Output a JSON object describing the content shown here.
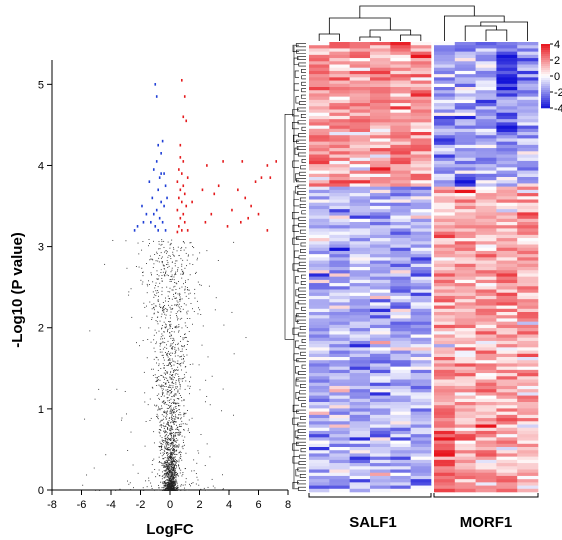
{
  "chart_data": [
    {
      "type": "scatter",
      "subtype": "volcano",
      "title": "",
      "xlabel": "LogFC",
      "ylabel": "-Log10 (P value)",
      "xlim": [
        -8,
        8
      ],
      "ylim": [
        0,
        5.3
      ],
      "xticks": [
        -8,
        -6,
        -4,
        -2,
        0,
        2,
        4,
        6,
        8
      ],
      "yticks": [
        0,
        1,
        2,
        3,
        4,
        5
      ],
      "grid": false,
      "colors": {
        "up": "#e41a1c",
        "down": "#1f3fd6",
        "ns": "#222222"
      },
      "series": [
        {
          "group": "down",
          "color": "#1f3fd6",
          "points": [
            [
              -1.0,
              5.0
            ],
            [
              -0.9,
              4.85
            ],
            [
              -0.8,
              4.25
            ],
            [
              -0.6,
              4.15
            ],
            [
              -0.9,
              4.05
            ],
            [
              -0.5,
              4.3
            ],
            [
              -1.1,
              3.95
            ],
            [
              -0.7,
              3.85
            ],
            [
              -0.4,
              3.9
            ],
            [
              -1.4,
              3.8
            ],
            [
              -0.8,
              3.7
            ],
            [
              -0.3,
              3.75
            ],
            [
              -1.2,
              3.6
            ],
            [
              -0.6,
              3.55
            ],
            [
              -1.9,
              3.5
            ],
            [
              -0.9,
              3.45
            ],
            [
              -0.4,
              3.5
            ],
            [
              -1.6,
              3.4
            ],
            [
              -0.7,
              3.35
            ],
            [
              -1.3,
              3.3
            ],
            [
              -0.5,
              3.3
            ],
            [
              -2.2,
              3.25
            ],
            [
              -1.0,
              3.25
            ],
            [
              -0.3,
              3.2
            ],
            [
              -1.8,
              3.3
            ],
            [
              -0.8,
              3.2
            ],
            [
              -2.4,
              3.2
            ],
            [
              -0.6,
              3.9
            ],
            [
              -1.1,
              3.4
            ],
            [
              -0.2,
              3.6
            ]
          ]
        },
        {
          "group": "up",
          "color": "#e41a1c",
          "points": [
            [
              0.8,
              5.05
            ],
            [
              1.0,
              4.85
            ],
            [
              0.9,
              4.6
            ],
            [
              1.1,
              4.55
            ],
            [
              0.7,
              4.25
            ],
            [
              0.7,
              4.1
            ],
            [
              0.9,
              4.05
            ],
            [
              0.6,
              3.95
            ],
            [
              0.8,
              3.9
            ],
            [
              1.2,
              3.85
            ],
            [
              0.5,
              3.8
            ],
            [
              0.9,
              3.75
            ],
            [
              0.7,
              3.7
            ],
            [
              1.0,
              3.65
            ],
            [
              0.6,
              3.6
            ],
            [
              0.8,
              3.55
            ],
            [
              1.1,
              3.5
            ],
            [
              0.5,
              3.45
            ],
            [
              0.9,
              3.4
            ],
            [
              0.7,
              3.35
            ],
            [
              1.0,
              3.3
            ],
            [
              0.6,
              3.25
            ],
            [
              0.8,
              3.2
            ],
            [
              1.2,
              3.2
            ],
            [
              0.5,
              3.18
            ],
            [
              2.5,
              4.0
            ],
            [
              3.6,
              4.05
            ],
            [
              4.9,
              4.05
            ],
            [
              6.6,
              4.0
            ],
            [
              7.2,
              4.05
            ],
            [
              2.2,
              3.7
            ],
            [
              3.0,
              3.65
            ],
            [
              3.3,
              3.75
            ],
            [
              4.6,
              3.7
            ],
            [
              5.8,
              3.8
            ],
            [
              6.2,
              3.85
            ],
            [
              6.8,
              3.85
            ],
            [
              4.2,
              3.45
            ],
            [
              5.1,
              3.6
            ],
            [
              5.5,
              3.5
            ],
            [
              2.8,
              3.4
            ],
            [
              6.0,
              3.4
            ],
            [
              4.8,
              3.3
            ],
            [
              3.9,
              3.25
            ],
            [
              5.3,
              3.35
            ],
            [
              6.6,
              3.2
            ],
            [
              2.4,
              3.3
            ],
            [
              1.5,
              3.55
            ]
          ]
        }
      ],
      "background_points": "dense cloud of non-significant points centered at x≈0, y 0–3"
    },
    {
      "type": "heatmap",
      "title": "",
      "column_groups": [
        {
          "name": "SALF1",
          "n_columns": 6
        },
        {
          "name": "MORF1",
          "n_columns": 5
        }
      ],
      "n_rows": 140,
      "dendrogram": {
        "rows": true,
        "columns": true
      },
      "colorbar": {
        "ticks": [
          4,
          2,
          0,
          -2,
          -4
        ],
        "range": [
          -4,
          4
        ],
        "colors": {
          "high": "#e8141c",
          "mid": "#ffffff",
          "low": "#1414d8"
        }
      },
      "pattern": "Top ~45 rows high in SALF1 / low in MORF1; remaining rows low in SALF1 / high in MORF1"
    }
  ],
  "labels": {
    "volcano_xlabel": "LogFC",
    "volcano_ylabel": "-Log10 (P value)",
    "group_left": "SALF1",
    "group_right": "MORF1"
  }
}
